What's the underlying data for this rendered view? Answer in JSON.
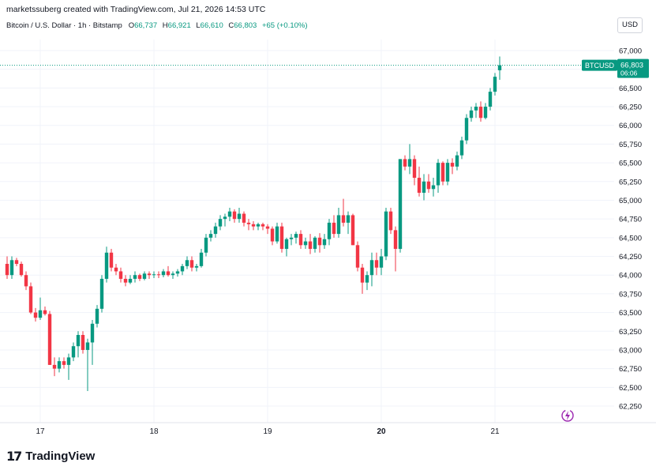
{
  "header": {
    "attribution": "marketssuberg created with TradingView.com, Jul 21, 2026 14:53 UTC"
  },
  "symbol_bar": {
    "name": "Bitcoin / U.S. Dollar · 1h · Bitstamp",
    "open_label": "O",
    "open": "66,737",
    "high_label": "H",
    "high": "66,921",
    "low_label": "L",
    "low": "66,610",
    "close_label": "C",
    "close": "66,803",
    "change": "+65 (+0.10%)"
  },
  "currency_button": "USD",
  "price_tag": {
    "symbol": "BTCUSD",
    "price": "66,803",
    "countdown": "06:06"
  },
  "footer": {
    "brand": "TradingView",
    "logo_mark": "17"
  },
  "colors": {
    "up": "#089981",
    "down": "#f23645",
    "grid": "#f0f3fa",
    "axis_text": "#131722"
  },
  "chart_data": {
    "type": "candlestick",
    "title": "",
    "ylim": [
      62000,
      67250
    ],
    "yticks": [
      62250,
      62500,
      62750,
      63000,
      63250,
      63500,
      63750,
      64000,
      64250,
      64500,
      64750,
      65000,
      65250,
      65500,
      65750,
      66000,
      66250,
      66500,
      66750,
      67000
    ],
    "ytick_labels": [
      "62,250",
      "62,500",
      "62,750",
      "63,000",
      "63,250",
      "63,500",
      "63,750",
      "64,000",
      "64,250",
      "64,500",
      "64,750",
      "65,000",
      "65,250",
      "65,500",
      "65,750",
      "66,000",
      "66,250",
      "66,500",
      "66,750",
      "67,000"
    ],
    "xticks": [
      {
        "label": "17",
        "index": 7
      },
      {
        "label": "18",
        "index": 31
      },
      {
        "label": "19",
        "index": 55
      },
      {
        "label": "20",
        "index": 79,
        "bold": true
      },
      {
        "label": "21",
        "index": 103
      }
    ],
    "last_price": 66803,
    "candles": [
      [
        64150,
        64250,
        63950,
        64000
      ],
      [
        64000,
        64250,
        63950,
        64200
      ],
      [
        64200,
        64230,
        64120,
        64150
      ],
      [
        64150,
        64180,
        63980,
        64000
      ],
      [
        64000,
        64050,
        63800,
        63850
      ],
      [
        63850,
        63900,
        63480,
        63500
      ],
      [
        63500,
        63560,
        63380,
        63430
      ],
      [
        63430,
        63700,
        63400,
        63530
      ],
      [
        63530,
        63580,
        63460,
        63480
      ],
      [
        63480,
        63520,
        62800,
        62800
      ],
      [
        62800,
        62900,
        62650,
        62750
      ],
      [
        62750,
        62900,
        62700,
        62850
      ],
      [
        62850,
        62900,
        62750,
        62800
      ],
      [
        62800,
        62950,
        62600,
        62900
      ],
      [
        62900,
        63100,
        62850,
        63050
      ],
      [
        63050,
        63250,
        62900,
        63200
      ],
      [
        63200,
        63250,
        62950,
        63000
      ],
      [
        63000,
        63150,
        62450,
        63100
      ],
      [
        63100,
        63400,
        62800,
        63350
      ],
      [
        63350,
        63600,
        63300,
        63550
      ],
      [
        63550,
        64000,
        63500,
        63950
      ],
      [
        63950,
        64380,
        63900,
        64300
      ],
      [
        64300,
        64350,
        64050,
        64100
      ],
      [
        64100,
        64150,
        64000,
        64050
      ],
      [
        64050,
        64100,
        63900,
        63950
      ],
      [
        63950,
        64000,
        63850,
        63900
      ],
      [
        63900,
        64000,
        63880,
        63950
      ],
      [
        63950,
        64050,
        63900,
        64000
      ],
      [
        64000,
        64020,
        63920,
        63950
      ],
      [
        63950,
        64050,
        63930,
        64020
      ],
      [
        64020,
        64050,
        63950,
        64000
      ],
      [
        64000,
        64050,
        63960,
        64010
      ],
      [
        64010,
        64050,
        63960,
        64000
      ],
      [
        64000,
        64080,
        63970,
        64050
      ],
      [
        64050,
        64120,
        63980,
        64000
      ],
      [
        64000,
        64050,
        63950,
        64020
      ],
      [
        64020,
        64080,
        63980,
        64050
      ],
      [
        64050,
        64150,
        64000,
        64120
      ],
      [
        64120,
        64250,
        64080,
        64200
      ],
      [
        64200,
        64250,
        64050,
        64100
      ],
      [
        64100,
        64150,
        64050,
        64120
      ],
      [
        64120,
        64350,
        64100,
        64300
      ],
      [
        64300,
        64550,
        64250,
        64500
      ],
      [
        64500,
        64600,
        64450,
        64550
      ],
      [
        64550,
        64700,
        64500,
        64650
      ],
      [
        64650,
        64800,
        64600,
        64750
      ],
      [
        64750,
        64820,
        64650,
        64780
      ],
      [
        64780,
        64900,
        64720,
        64850
      ],
      [
        64850,
        64880,
        64700,
        64750
      ],
      [
        64750,
        64900,
        64700,
        64820
      ],
      [
        64820,
        64850,
        64650,
        64700
      ],
      [
        64700,
        64750,
        64600,
        64680
      ],
      [
        64680,
        64720,
        64600,
        64650
      ],
      [
        64650,
        64700,
        64600,
        64680
      ],
      [
        64680,
        64700,
        64600,
        64650
      ],
      [
        64650,
        64680,
        64550,
        64620
      ],
      [
        64620,
        64650,
        64400,
        64450
      ],
      [
        64450,
        64700,
        64420,
        64650
      ],
      [
        64650,
        64700,
        64300,
        64350
      ],
      [
        64350,
        64500,
        64250,
        64480
      ],
      [
        64480,
        64550,
        64400,
        64500
      ],
      [
        64500,
        64580,
        64420,
        64550
      ],
      [
        64550,
        64600,
        64350,
        64400
      ],
      [
        64400,
        64500,
        64350,
        64450
      ],
      [
        64450,
        64550,
        64280,
        64350
      ],
      [
        64350,
        64520,
        64300,
        64500
      ],
      [
        64500,
        64560,
        64300,
        64400
      ],
      [
        64400,
        64550,
        64350,
        64480
      ],
      [
        64480,
        64750,
        64400,
        64700
      ],
      [
        64700,
        64800,
        64500,
        64550
      ],
      [
        64550,
        64900,
        64500,
        64800
      ],
      [
        64800,
        65020,
        64650,
        64700
      ],
      [
        64700,
        64850,
        64550,
        64800
      ],
      [
        64800,
        64820,
        64400,
        64400
      ],
      [
        64400,
        64450,
        64050,
        64100
      ],
      [
        64100,
        64150,
        63750,
        63900
      ],
      [
        63900,
        64050,
        63800,
        64000
      ],
      [
        64000,
        64300,
        63850,
        64200
      ],
      [
        64200,
        64300,
        64000,
        64100
      ],
      [
        64100,
        64350,
        64000,
        64250
      ],
      [
        64250,
        64900,
        64200,
        64850
      ],
      [
        64850,
        64900,
        64550,
        64600
      ],
      [
        64600,
        64650,
        64050,
        64350
      ],
      [
        64350,
        65550,
        64300,
        65550
      ],
      [
        65550,
        65600,
        65400,
        65450
      ],
      [
        65450,
        65750,
        65350,
        65550
      ],
      [
        65550,
        65600,
        65200,
        65300
      ],
      [
        65300,
        65450,
        65050,
        65100
      ],
      [
        65100,
        65350,
        65000,
        65250
      ],
      [
        65250,
        65350,
        65100,
        65150
      ],
      [
        65150,
        65300,
        65050,
        65200
      ],
      [
        65200,
        65550,
        65100,
        65500
      ],
      [
        65500,
        65520,
        65200,
        65250
      ],
      [
        65250,
        65550,
        65200,
        65500
      ],
      [
        65500,
        65560,
        65350,
        65450
      ],
      [
        65450,
        65650,
        65400,
        65600
      ],
      [
        65600,
        65850,
        65550,
        65800
      ],
      [
        65800,
        66150,
        65750,
        66100
      ],
      [
        66100,
        66250,
        66050,
        66200
      ],
      [
        66200,
        66300,
        66100,
        66250
      ],
      [
        66250,
        66320,
        66050,
        66100
      ],
      [
        66100,
        66300,
        66080,
        66250
      ],
      [
        66250,
        66500,
        66200,
        66450
      ],
      [
        66450,
        66700,
        66400,
        66650
      ],
      [
        66737,
        66921,
        66610,
        66803
      ]
    ]
  }
}
